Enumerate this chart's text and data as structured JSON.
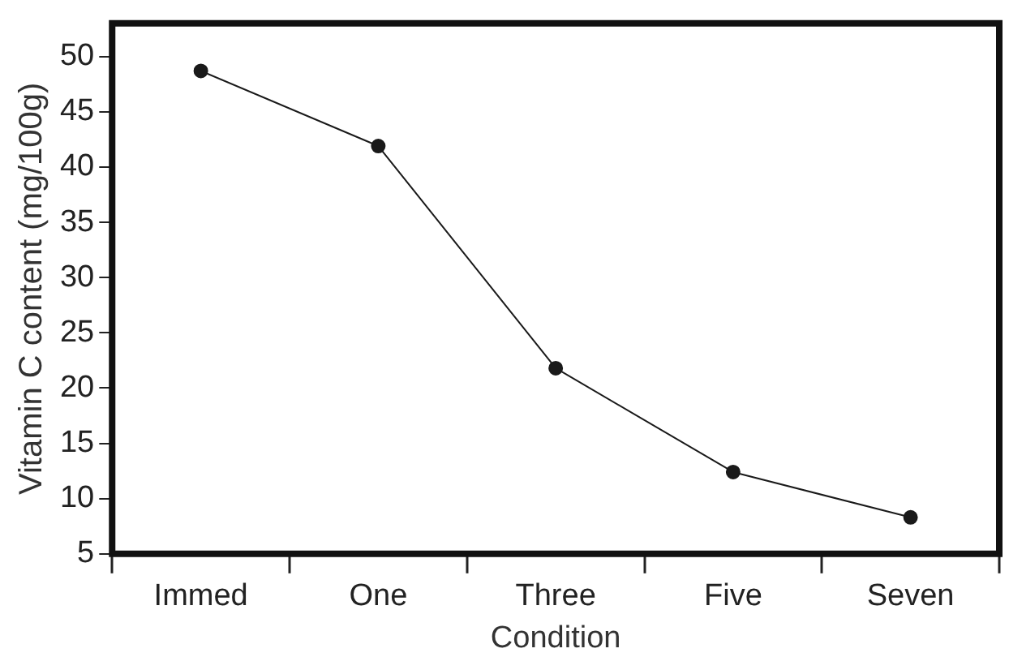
{
  "chart_data": {
    "type": "line",
    "xlabel": "Condition",
    "ylabel": "Vitamin C content (mg/100g)",
    "categories": [
      "Immed",
      "One",
      "Three",
      "Five",
      "Seven"
    ],
    "series": [
      {
        "color": "#1a1a1a",
        "values": [
          48.7,
          41.9,
          21.8,
          12.4,
          8.3
        ]
      }
    ],
    "ylim": [
      5,
      53
    ],
    "yticks": [
      5,
      10,
      15,
      20,
      25,
      30,
      35,
      40,
      45,
      50
    ],
    "grid": false,
    "legend": false,
    "marker": "circle",
    "line_style": "solid"
  }
}
